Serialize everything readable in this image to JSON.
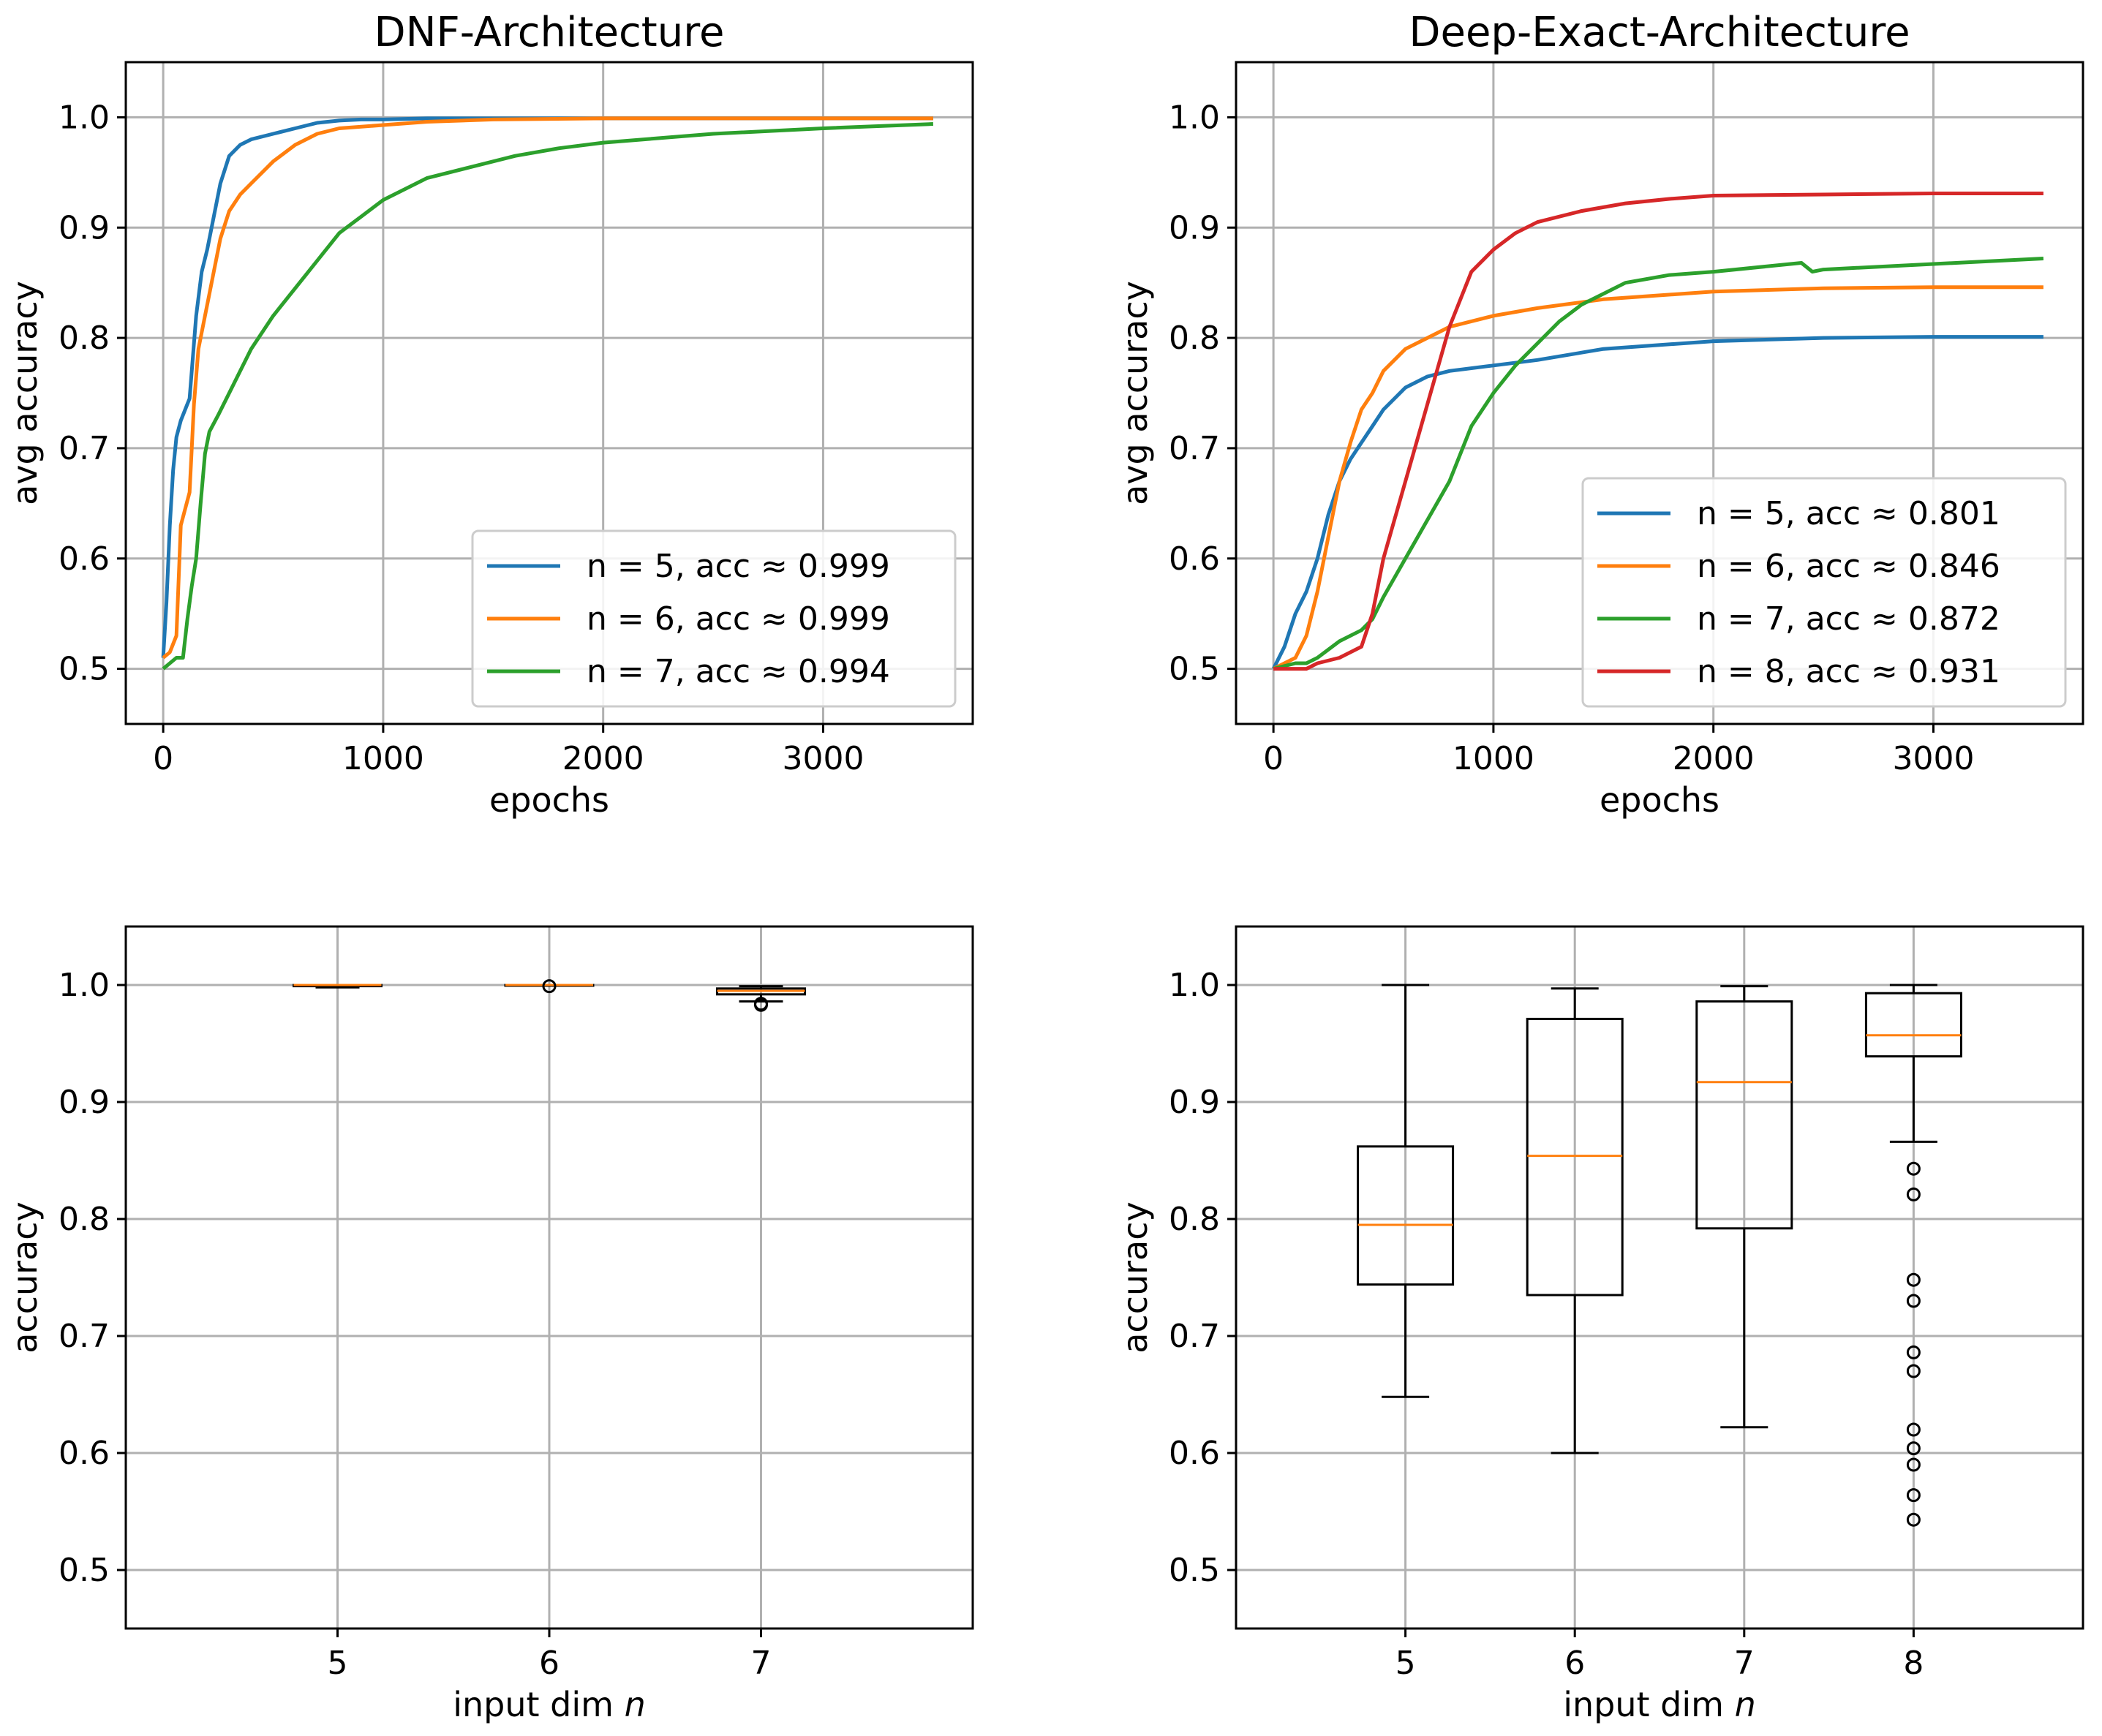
{
  "chart_data": [
    {
      "type": "line",
      "title": "DNF-Architecture",
      "xlabel": "epochs",
      "ylabel": "avg accuracy",
      "xlim": [
        -170,
        3680
      ],
      "ylim": [
        0.45,
        1.05
      ],
      "xticks": [
        0,
        1000,
        2000,
        3000
      ],
      "yticks": [
        0.5,
        0.6,
        0.7,
        0.8,
        0.9,
        1.0
      ],
      "grid": true,
      "legend": "lower right",
      "series": [
        {
          "name": "n = 5, acc ≈ 0.999",
          "color": "#1f77b4",
          "x": [
            0,
            15,
            30,
            45,
            60,
            80,
            100,
            120,
            150,
            175,
            200,
            230,
            260,
            300,
            350,
            400,
            500,
            600,
            700,
            800,
            900,
            1000,
            1200,
            1500,
            2000,
            3000,
            3500
          ],
          "y": [
            0.51,
            0.56,
            0.63,
            0.68,
            0.71,
            0.725,
            0.735,
            0.745,
            0.82,
            0.86,
            0.88,
            0.91,
            0.94,
            0.965,
            0.975,
            0.98,
            0.985,
            0.99,
            0.995,
            0.997,
            0.998,
            0.998,
            0.999,
            0.999,
            0.999,
            0.999,
            0.999
          ]
        },
        {
          "name": "n = 6, acc ≈ 0.999",
          "color": "#ff7f0e",
          "x": [
            0,
            30,
            60,
            80,
            100,
            120,
            140,
            160,
            190,
            220,
            260,
            300,
            350,
            400,
            500,
            600,
            700,
            800,
            1000,
            1200,
            1500,
            2000,
            3000,
            3500
          ],
          "y": [
            0.51,
            0.515,
            0.53,
            0.63,
            0.645,
            0.66,
            0.74,
            0.79,
            0.82,
            0.85,
            0.89,
            0.915,
            0.93,
            0.94,
            0.96,
            0.975,
            0.985,
            0.99,
            0.993,
            0.996,
            0.998,
            0.999,
            0.999,
            0.999
          ]
        },
        {
          "name": "n = 7, acc ≈ 0.994",
          "color": "#2ca02c",
          "x": [
            0,
            30,
            60,
            90,
            110,
            130,
            150,
            170,
            190,
            210,
            250,
            300,
            400,
            500,
            600,
            700,
            800,
            900,
            1000,
            1200,
            1400,
            1600,
            1800,
            2000,
            2500,
            3000,
            3500
          ],
          "y": [
            0.5,
            0.505,
            0.51,
            0.51,
            0.545,
            0.575,
            0.6,
            0.65,
            0.695,
            0.715,
            0.73,
            0.75,
            0.79,
            0.82,
            0.845,
            0.87,
            0.895,
            0.91,
            0.925,
            0.945,
            0.955,
            0.965,
            0.972,
            0.977,
            0.985,
            0.99,
            0.994
          ]
        }
      ]
    },
    {
      "type": "line",
      "title": "Deep-Exact-Architecture",
      "xlabel": "epochs",
      "ylabel": "avg accuracy",
      "xlim": [
        -170,
        3680
      ],
      "ylim": [
        0.45,
        1.05
      ],
      "xticks": [
        0,
        1000,
        2000,
        3000
      ],
      "yticks": [
        0.5,
        0.6,
        0.7,
        0.8,
        0.9,
        1.0
      ],
      "grid": true,
      "legend": "lower right",
      "series": [
        {
          "name": "n = 5, acc ≈ 0.801",
          "color": "#1f77b4",
          "x": [
            0,
            50,
            100,
            150,
            200,
            250,
            300,
            350,
            400,
            450,
            500,
            600,
            700,
            800,
            1000,
            1200,
            1500,
            2000,
            2500,
            3000,
            3500
          ],
          "y": [
            0.5,
            0.52,
            0.55,
            0.57,
            0.6,
            0.64,
            0.67,
            0.69,
            0.705,
            0.72,
            0.735,
            0.755,
            0.765,
            0.77,
            0.775,
            0.78,
            0.79,
            0.797,
            0.8,
            0.801,
            0.801
          ]
        },
        {
          "name": "n = 6, acc ≈ 0.846",
          "color": "#ff7f0e",
          "x": [
            0,
            50,
            100,
            150,
            200,
            250,
            300,
            350,
            400,
            450,
            500,
            600,
            700,
            800,
            1000,
            1200,
            1500,
            2000,
            2500,
            3000,
            3500
          ],
          "y": [
            0.5,
            0.505,
            0.51,
            0.53,
            0.57,
            0.62,
            0.67,
            0.705,
            0.735,
            0.75,
            0.77,
            0.79,
            0.8,
            0.81,
            0.82,
            0.827,
            0.835,
            0.842,
            0.845,
            0.846,
            0.846
          ]
        },
        {
          "name": "n = 7, acc ≈ 0.872",
          "color": "#2ca02c",
          "x": [
            0,
            100,
            150,
            200,
            300,
            400,
            450,
            500,
            600,
            700,
            800,
            900,
            1000,
            1100,
            1200,
            1300,
            1400,
            1500,
            1600,
            1800,
            2000,
            2400,
            2450,
            2500,
            3000,
            3500
          ],
          "y": [
            0.5,
            0.505,
            0.505,
            0.51,
            0.525,
            0.535,
            0.545,
            0.565,
            0.6,
            0.635,
            0.67,
            0.72,
            0.75,
            0.775,
            0.795,
            0.815,
            0.83,
            0.84,
            0.85,
            0.857,
            0.86,
            0.868,
            0.86,
            0.862,
            0.867,
            0.872
          ]
        },
        {
          "name": "n = 8, acc ≈ 0.931",
          "color": "#d62728",
          "x": [
            0,
            100,
            150,
            200,
            300,
            400,
            450,
            500,
            600,
            700,
            800,
            900,
            1000,
            1100,
            1200,
            1400,
            1600,
            1800,
            2000,
            2500,
            3000,
            3500
          ],
          "y": [
            0.5,
            0.5,
            0.5,
            0.505,
            0.51,
            0.52,
            0.55,
            0.6,
            0.67,
            0.74,
            0.81,
            0.86,
            0.88,
            0.895,
            0.905,
            0.915,
            0.922,
            0.926,
            0.929,
            0.93,
            0.931,
            0.931
          ]
        }
      ]
    },
    {
      "type": "box",
      "xlabel": "input dim n",
      "ylabel": "accuracy",
      "ylim": [
        0.45,
        1.05
      ],
      "yticks": [
        0.5,
        0.6,
        0.7,
        0.8,
        0.9,
        1.0
      ],
      "grid": true,
      "categories": [
        "5",
        "6",
        "7"
      ],
      "boxes": [
        {
          "q1": 0.999,
          "median": 1.0,
          "q3": 1.0,
          "whislo": 0.998,
          "whishi": 1.0,
          "fliers": []
        },
        {
          "q1": 1.0,
          "median": 1.0,
          "q3": 1.0,
          "whislo": 1.0,
          "whishi": 1.0,
          "fliers": [
            0.999
          ]
        },
        {
          "q1": 0.992,
          "median": 0.995,
          "q3": 0.997,
          "whislo": 0.986,
          "whishi": 0.999,
          "fliers": [
            0.983,
            0.984
          ]
        }
      ]
    },
    {
      "type": "box",
      "xlabel": "input dim n",
      "ylabel": "accuracy",
      "ylim": [
        0.45,
        1.05
      ],
      "yticks": [
        0.5,
        0.6,
        0.7,
        0.8,
        0.9,
        1.0
      ],
      "grid": true,
      "categories": [
        "5",
        "6",
        "7",
        "8"
      ],
      "boxes": [
        {
          "q1": 0.744,
          "median": 0.795,
          "q3": 0.862,
          "whislo": 0.648,
          "whishi": 1.0,
          "fliers": []
        },
        {
          "q1": 0.735,
          "median": 0.854,
          "q3": 0.971,
          "whislo": 0.6,
          "whishi": 0.997,
          "fliers": []
        },
        {
          "q1": 0.792,
          "median": 0.917,
          "q3": 0.986,
          "whislo": 0.622,
          "whishi": 0.999,
          "fliers": []
        },
        {
          "q1": 0.939,
          "median": 0.957,
          "q3": 0.993,
          "whislo": 0.866,
          "whishi": 1.0,
          "fliers": [
            0.843,
            0.821,
            0.748,
            0.73,
            0.686,
            0.67,
            0.62,
            0.604,
            0.59,
            0.564,
            0.543
          ]
        }
      ]
    }
  ]
}
